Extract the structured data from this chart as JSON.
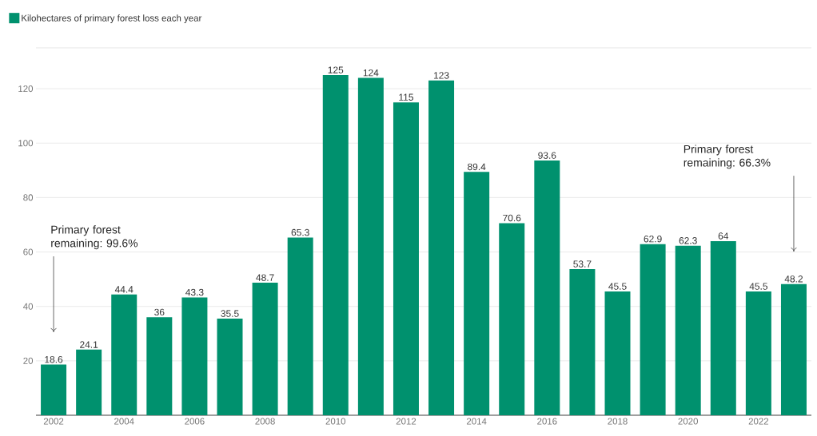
{
  "chart_data": {
    "type": "bar",
    "categories": [
      "2002",
      null,
      "2004",
      null,
      "2006",
      null,
      "2008",
      null,
      "2010",
      null,
      "2012",
      null,
      "2014",
      null,
      "2016",
      null,
      "2018",
      null,
      "2020",
      null,
      "2022",
      null
    ],
    "series": [
      {
        "name": "Kilohectares of primary forest loss each year",
        "color": "#00916e",
        "values": [
          18.6,
          24.1,
          44.4,
          36,
          43.3,
          35.5,
          48.7,
          65.3,
          125,
          124,
          115,
          123,
          89.4,
          70.6,
          93.6,
          53.7,
          45.5,
          62.9,
          62.3,
          64,
          45.5,
          48.2
        ]
      }
    ],
    "ylim": [
      0,
      135
    ],
    "yticks": [
      20,
      40,
      60,
      80,
      100,
      120
    ],
    "grid": "y",
    "legend": "top left",
    "data_labels": true,
    "annotations": [
      "Primary forest remaining: 99.6%",
      "Primary forest remaining: 66.3%"
    ]
  }
}
